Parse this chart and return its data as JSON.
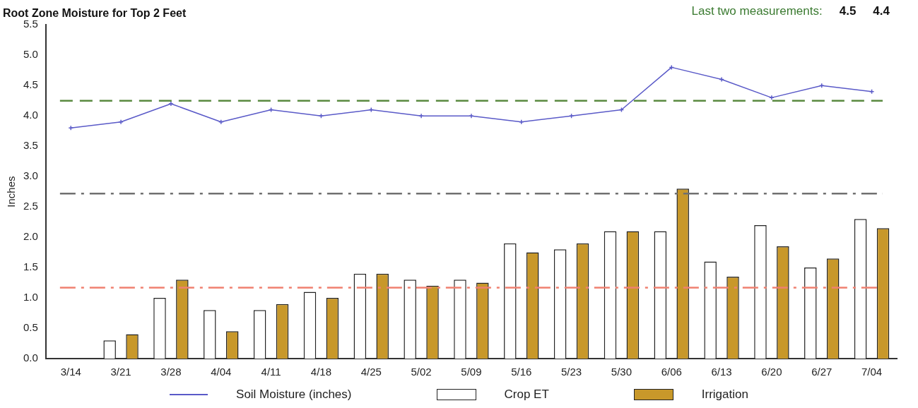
{
  "chart_data": {
    "type": "bar",
    "title": "Root Zone Moisture for Top 2 Feet",
    "ylabel": "Inches",
    "categories": [
      "3/14",
      "3/21",
      "3/28",
      "4/04",
      "4/11",
      "4/18",
      "4/25",
      "5/02",
      "5/09",
      "5/16",
      "5/23",
      "5/30",
      "6/06",
      "6/13",
      "6/20",
      "6/27",
      "7/04"
    ],
    "series": [
      {
        "name": "Soil Moisture (inches)",
        "type": "line",
        "color": "#5a5ac8",
        "values": [
          3.8,
          3.9,
          4.2,
          3.9,
          4.1,
          4.0,
          4.1,
          4.0,
          4.0,
          3.9,
          4.0,
          4.1,
          4.8,
          4.6,
          4.3,
          4.5,
          4.4
        ]
      },
      {
        "name": "Crop ET",
        "color": "#ffffff",
        "values": [
          0,
          0.3,
          1.0,
          0.8,
          0.8,
          1.1,
          1.4,
          1.3,
          1.3,
          1.9,
          1.8,
          2.1,
          2.1,
          1.6,
          2.2,
          1.5,
          2.3
        ]
      },
      {
        "name": "Irrigation",
        "color": "#c8982a",
        "values": [
          0,
          0.4,
          1.3,
          0.45,
          0.9,
          1.0,
          1.4,
          1.2,
          1.25,
          1.75,
          1.9,
          2.1,
          2.8,
          1.35,
          1.85,
          1.65,
          2.15
        ]
      }
    ],
    "ylim": [
      0,
      5.5
    ],
    "yticks": [
      {
        "value": 0,
        "label": "0.0"
      },
      {
        "value": 0.5,
        "label": "0.5"
      },
      {
        "value": 1,
        "label": "1.0"
      },
      {
        "value": 1.5,
        "label": "1.5"
      },
      {
        "value": 2,
        "label": "2.0"
      },
      {
        "value": 2.5,
        "label": "2.5"
      },
      {
        "value": 3,
        "label": "3.0"
      },
      {
        "value": 3.5,
        "label": "3.5"
      },
      {
        "value": 4,
        "label": "4.0"
      },
      {
        "value": 4.5,
        "label": "4.5"
      },
      {
        "value": 5,
        "label": "5.0"
      },
      {
        "value": 5.5,
        "label": "5.5"
      }
    ],
    "ref_lines": [
      {
        "axis": "y",
        "value": 4.25,
        "color": "#5a8a40",
        "line_style": "dashed"
      },
      {
        "axis": "y",
        "value": 2.72,
        "color": "#707070",
        "line_style": "dashdot"
      },
      {
        "axis": "y",
        "value": 1.17,
        "color": "#f08070",
        "line_style": "dashdot"
      }
    ],
    "annotations": [
      "Last two measurements:",
      "4.5",
      "4.4"
    ],
    "grid": false,
    "legend": "bottom",
    "marker": "cross"
  }
}
